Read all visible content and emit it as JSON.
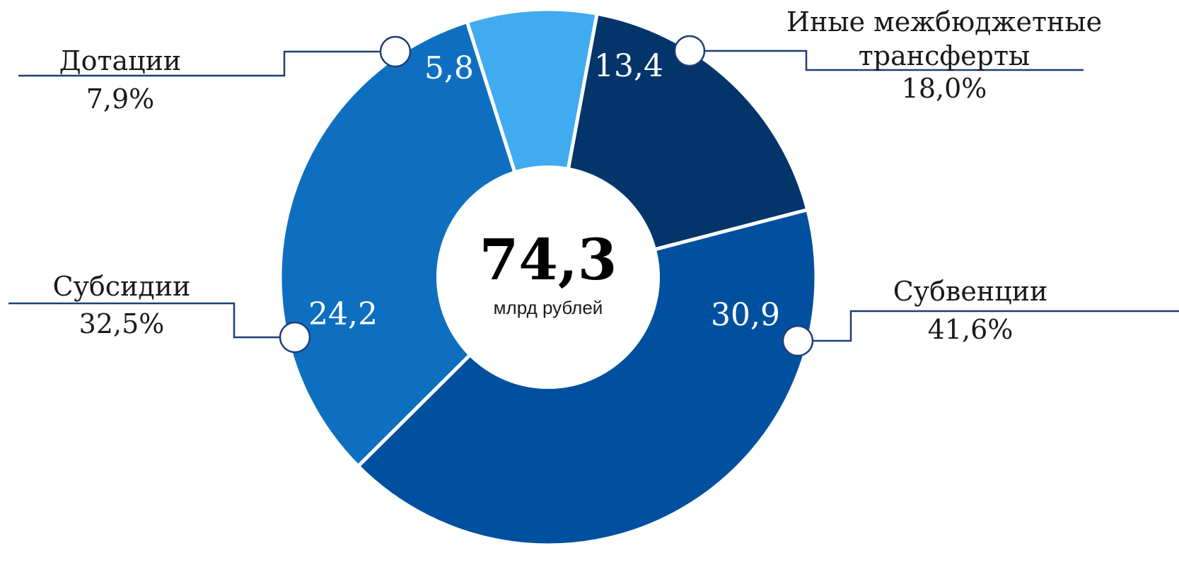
{
  "chart_data": {
    "type": "pie",
    "subtype": "donut",
    "center": {
      "total": "74,3",
      "unit": "млрд рублей"
    },
    "slices": [
      {
        "name": "Иные межбюджетные трансферты",
        "name_lines": [
          "Иные межбюджетные",
          "трансферты"
        ],
        "value": 13.4,
        "value_label": "13,4",
        "percent": "18,0%",
        "color": "#03346a"
      },
      {
        "name": "Субвенции",
        "name_lines": [
          "Субвенции"
        ],
        "value": 30.9,
        "value_label": "30,9",
        "percent": "41,6%",
        "color": "#00509f"
      },
      {
        "name": "Субсидии",
        "name_lines": [
          "Субсидии"
        ],
        "value": 24.2,
        "value_label": "24,2",
        "percent": "32,5%",
        "color": "#0e6fc1"
      },
      {
        "name": "Дотации",
        "name_lines": [
          "Дотации"
        ],
        "value": 5.8,
        "value_label": "5,8",
        "percent": "7,9%",
        "color": "#41abf0"
      }
    ],
    "connector_color": "#1d3f73"
  }
}
